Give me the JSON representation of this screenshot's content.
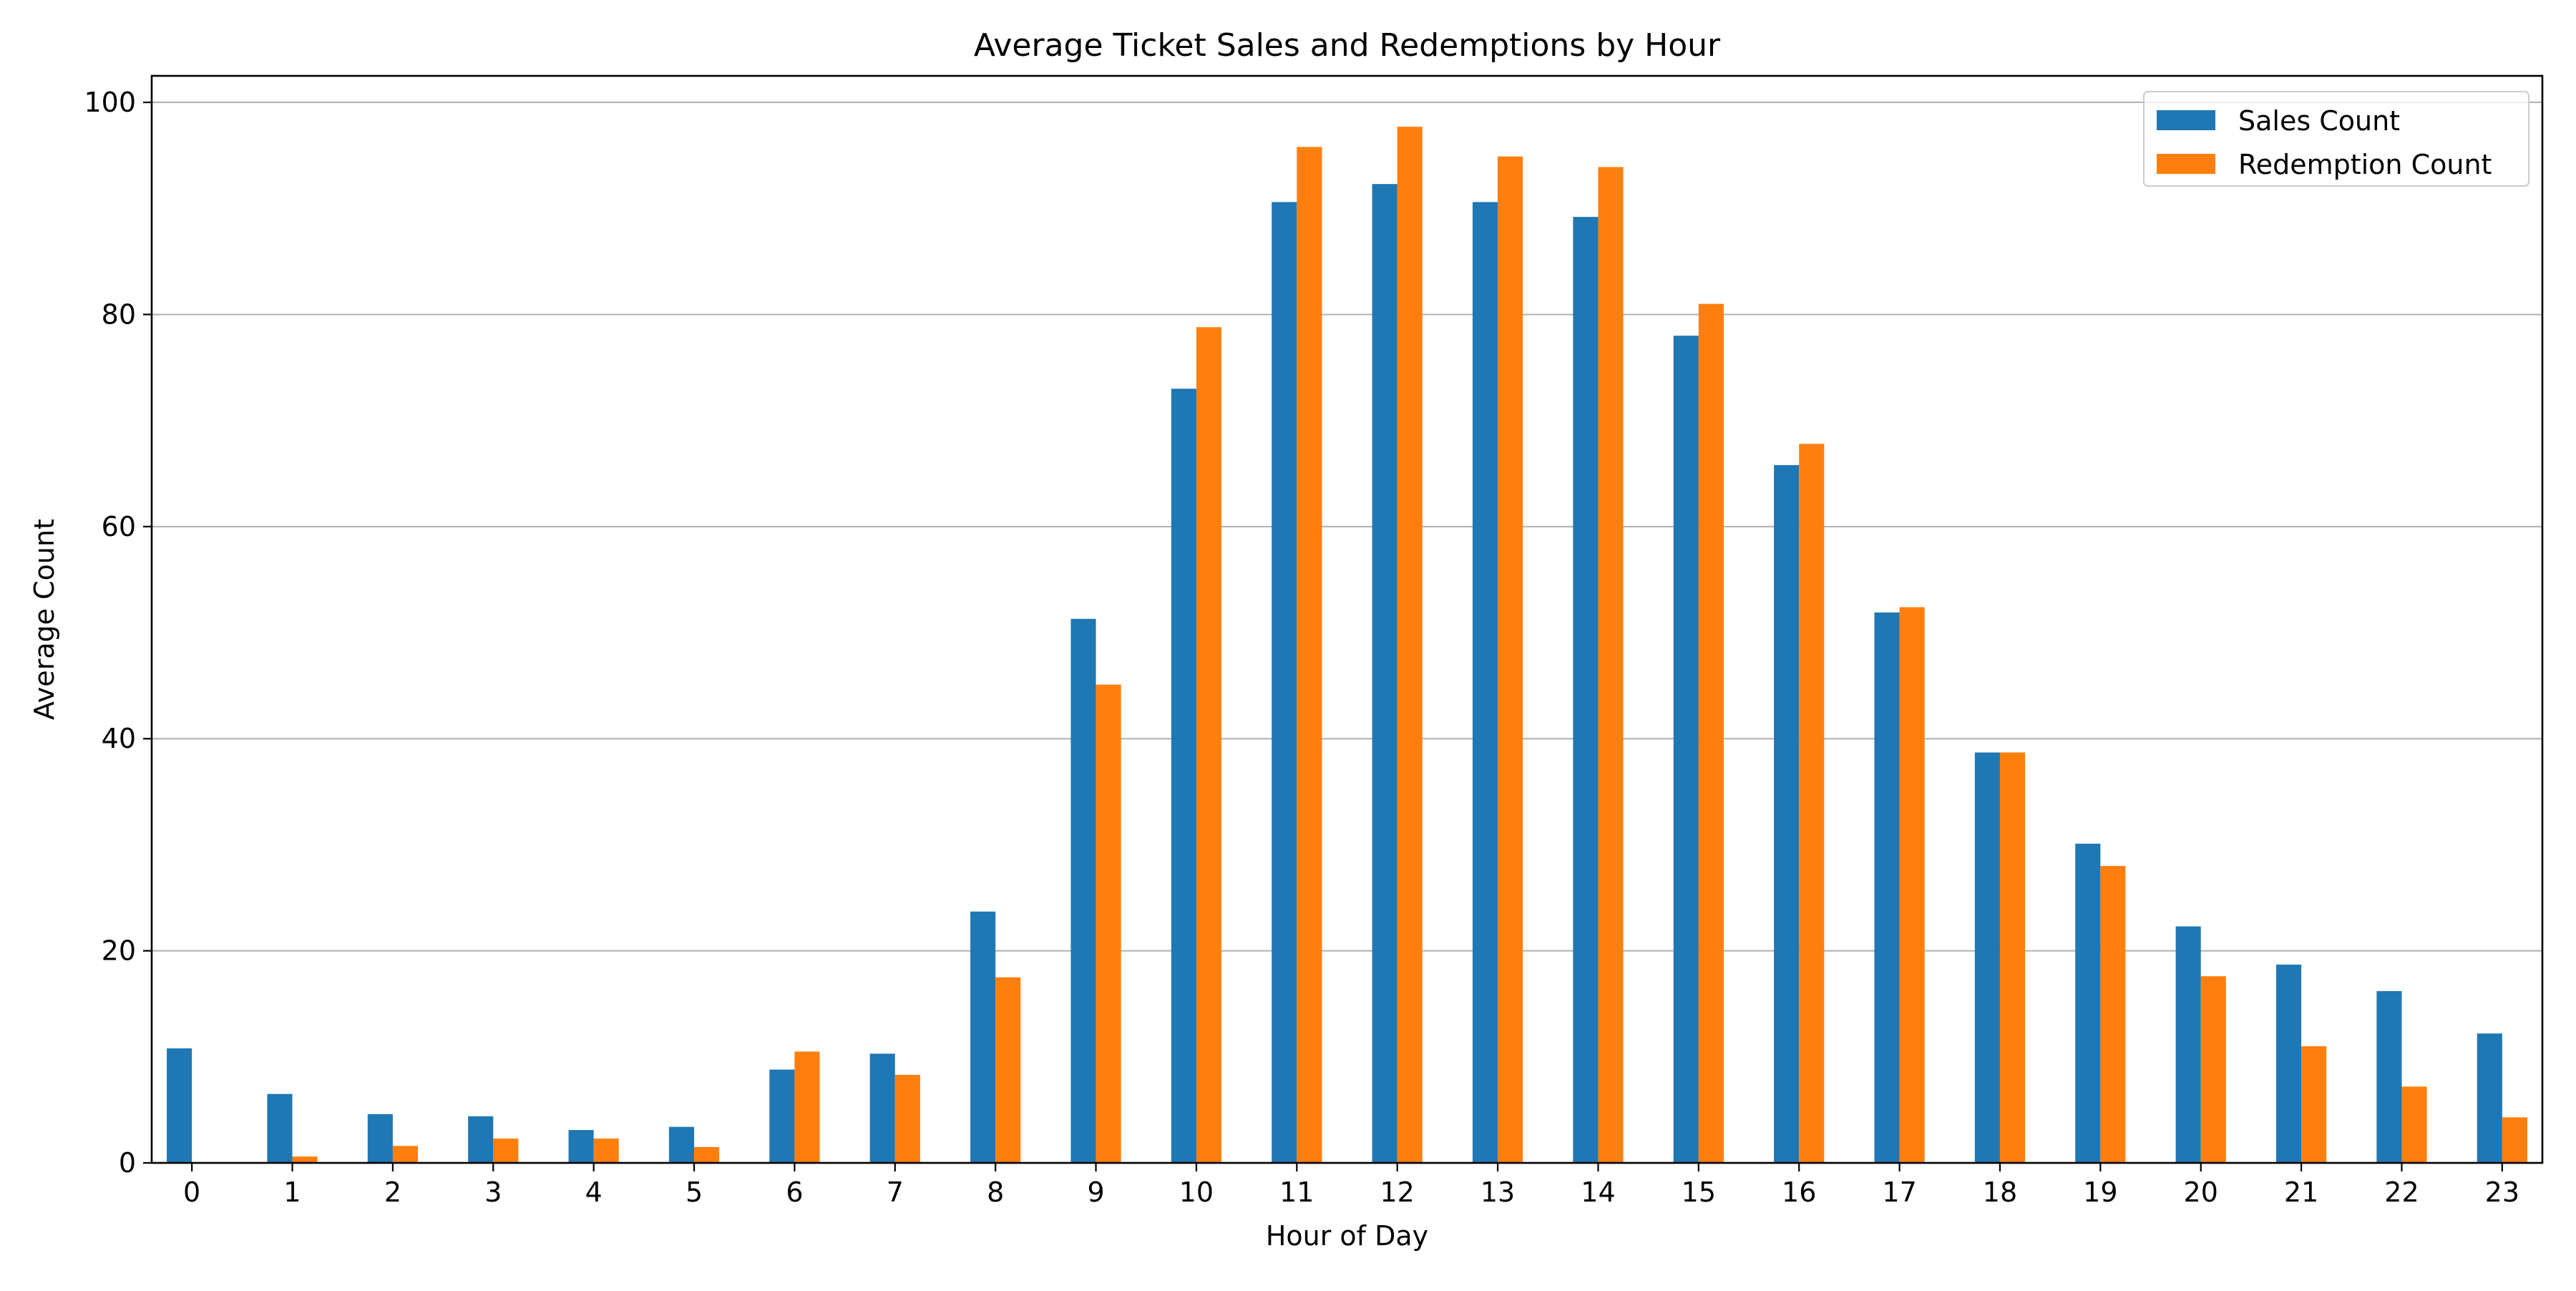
{
  "chart_data": {
    "type": "bar",
    "title": "Average Ticket Sales and Redemptions by Hour",
    "xlabel": "Hour of Day",
    "ylabel": "Average Count",
    "ylim": [
      0,
      102.5
    ],
    "yticks": [
      0,
      20,
      40,
      60,
      80,
      100
    ],
    "grid": "y",
    "legend_position": "top-right",
    "categories": [
      "0",
      "1",
      "2",
      "3",
      "4",
      "5",
      "6",
      "7",
      "8",
      "9",
      "10",
      "11",
      "12",
      "13",
      "14",
      "15",
      "16",
      "17",
      "18",
      "19",
      "20",
      "21",
      "22",
      "23"
    ],
    "series": [
      {
        "name": "Sales Count",
        "color": "#1f77b4",
        "values": [
          10.8,
          6.5,
          4.6,
          4.4,
          3.1,
          3.4,
          8.8,
          10.3,
          23.7,
          51.3,
          73.0,
          90.6,
          92.3,
          90.6,
          89.2,
          78.0,
          65.8,
          51.9,
          38.7,
          30.1,
          22.3,
          18.7,
          16.2,
          12.2
        ]
      },
      {
        "name": "Redemption Count",
        "color": "#ff7f0e",
        "values": [
          0.0,
          0.6,
          1.6,
          2.3,
          2.3,
          1.5,
          10.5,
          8.3,
          17.5,
          45.1,
          78.8,
          95.8,
          97.7,
          94.9,
          93.9,
          81.0,
          67.8,
          52.4,
          38.7,
          28.0,
          17.6,
          11.0,
          7.2,
          4.3
        ]
      }
    ]
  }
}
